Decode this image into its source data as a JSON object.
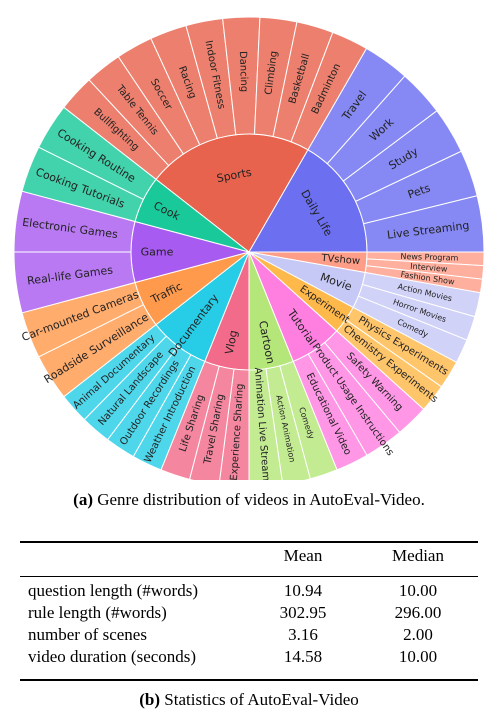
{
  "sunburst": {
    "title_inner": "",
    "inner": [
      {
        "label": "Sports",
        "color": "#E8634D",
        "children": [
          {
            "label": "Racing"
          },
          {
            "label": "Indoor Fitness"
          },
          {
            "label": "Dancing"
          },
          {
            "label": "Climbing"
          },
          {
            "label": "Basketball"
          },
          {
            "label": "Badminton"
          },
          {
            "label": "Bullfighting"
          },
          {
            "label": "Table Tennis"
          },
          {
            "label": "Soccer"
          }
        ]
      },
      {
        "label": "Daily Life",
        "color": "#6B6FF0",
        "children": [
          {
            "label": "Travel"
          },
          {
            "label": "Work"
          },
          {
            "label": "Study"
          },
          {
            "label": "Pets"
          },
          {
            "label": "Live Streaming"
          }
        ]
      },
      {
        "label": "TVshow",
        "color": "#FF9E88",
        "children": [
          {
            "label": "News Program"
          },
          {
            "label": "Interview"
          },
          {
            "label": "Fashion Show"
          }
        ]
      },
      {
        "label": "Movie",
        "color": "#C6C8F6",
        "children": [
          {
            "label": "Action Movies"
          },
          {
            "label": "Horror Movies"
          },
          {
            "label": "Comedy"
          }
        ]
      },
      {
        "label": "Experiment",
        "color": "#FFB84A",
        "children": [
          {
            "label": "Physics Experiments"
          },
          {
            "label": "Chemistry Experiments"
          }
        ]
      },
      {
        "label": "Tutorial",
        "color": "#FF7FE0",
        "children": [
          {
            "label": "Safety Warning"
          },
          {
            "label": "Product Usage Instructions"
          },
          {
            "label": "Educational Video"
          }
        ]
      },
      {
        "label": "Cartoon",
        "color": "#B5E67A",
        "children": [
          {
            "label": "Comedy"
          },
          {
            "label": "Action Animation"
          },
          {
            "label": "Animation Live Streaming"
          }
        ]
      },
      {
        "label": "Vlog",
        "color": "#F26B8A",
        "children": [
          {
            "label": "Experience Sharing"
          },
          {
            "label": "Travel Sharing"
          },
          {
            "label": "Life Sharing"
          }
        ]
      },
      {
        "label": "Documentary",
        "color": "#27CDE6",
        "children": [
          {
            "label": "Weather Introduction"
          },
          {
            "label": "Outdoor Recordings"
          },
          {
            "label": "Natural Landscape"
          },
          {
            "label": "Animal Documentary"
          }
        ]
      },
      {
        "label": "Traffic",
        "color": "#FF9A4D",
        "children": [
          {
            "label": "Roadside Surveillance"
          },
          {
            "label": "Car-mounted Cameras"
          }
        ]
      },
      {
        "label": "Game",
        "color": "#A85BF0",
        "children": [
          {
            "label": "Real-life Games"
          },
          {
            "label": "Electronic Games"
          }
        ]
      },
      {
        "label": "Cook",
        "color": "#19C99A",
        "children": [
          {
            "label": "Cooking Tutorials"
          },
          {
            "label": "Cooking Routine"
          }
        ]
      }
    ]
  },
  "caption_a": {
    "tag": "(a)",
    "text": " Genre distribution of videos in AutoEval-Video."
  },
  "table": {
    "headers": [
      "",
      "Mean",
      "Median"
    ],
    "rows": [
      [
        "question length (#words)",
        "10.94",
        "10.00"
      ],
      [
        "rule length (#words)",
        "302.95",
        "296.00"
      ],
      [
        "number of scenes",
        "3.16",
        "2.00"
      ],
      [
        "video duration (seconds)",
        "14.58",
        "10.00"
      ]
    ]
  },
  "caption_b": {
    "tag": "(b)",
    "text": " Statistics of AutoEval-Video"
  }
}
